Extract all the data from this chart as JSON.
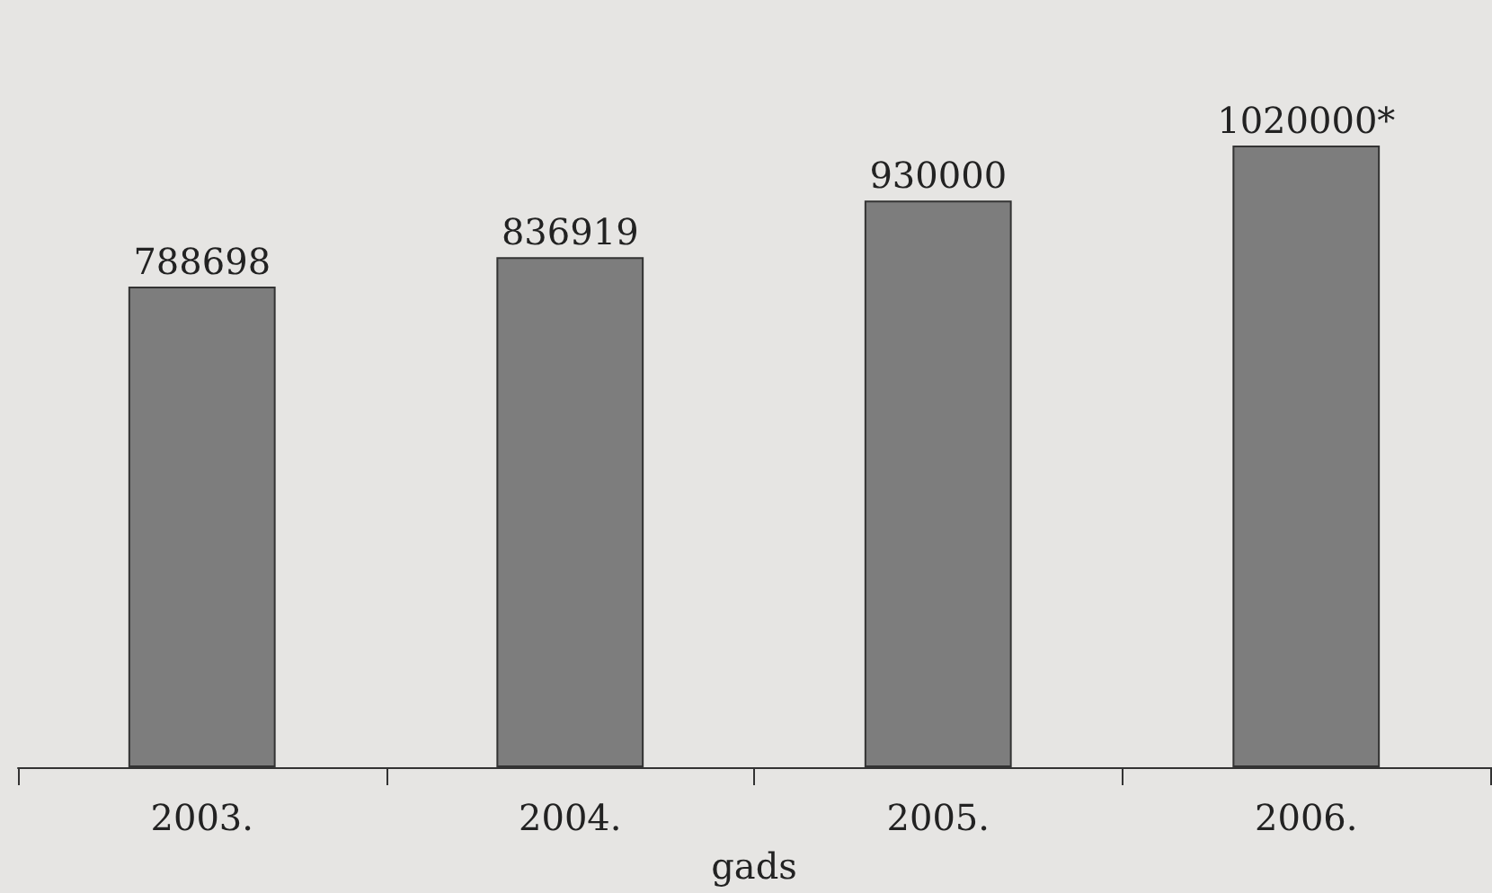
{
  "chart_data": {
    "type": "bar",
    "xlabel": "gads",
    "categories": [
      "2003.",
      "2004.",
      "2005.",
      "2006."
    ],
    "values": [
      788698,
      836919,
      930000,
      1020000
    ],
    "value_labels": [
      "788698",
      "836919",
      "930000",
      "1020000*"
    ],
    "color": "#7d7d7d"
  }
}
